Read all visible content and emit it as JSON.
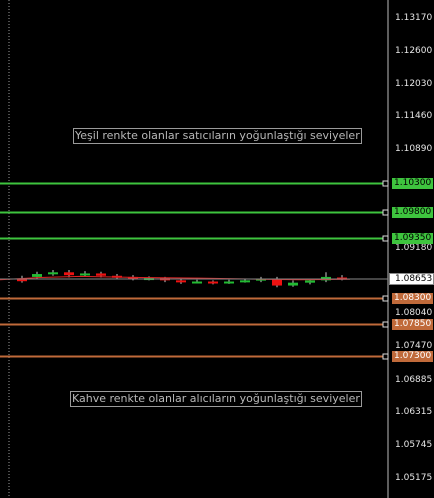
{
  "price_axis": {
    "ticks": [
      "1.13170",
      "1.12600",
      "1.12030",
      "1.11460",
      "1.10890",
      "1.09180",
      "1.08040",
      "1.07470",
      "1.06885",
      "1.06315",
      "1.05745",
      "1.05175"
    ]
  },
  "current_price": "1.08653",
  "green_levels": [
    {
      "price": "1.10300",
      "color": "#3ec43e"
    },
    {
      "price": "1.09800",
      "color": "#3ec43e"
    },
    {
      "price": "1.09350",
      "color": "#3ec43e"
    }
  ],
  "brown_levels": [
    {
      "price": "1.08300",
      "color": "#c06a3a"
    },
    {
      "price": "1.07850",
      "color": "#c06a3a"
    },
    {
      "price": "1.07300",
      "color": "#c06a3a"
    }
  ],
  "annotations": {
    "green_text": "Yeşil renkte olanlar satıcıların yoğunlaştığı seviyeler",
    "brown_text": "Kahve renkte olanlar alıcıların yoğunlaştığı seviyeler"
  },
  "colors": {
    "background": "#000000",
    "bull_candle": "#22bb33",
    "bear_candle": "#ee1111",
    "moving_average": "#dd2222",
    "current_price_line": "#8a8a8a"
  }
}
